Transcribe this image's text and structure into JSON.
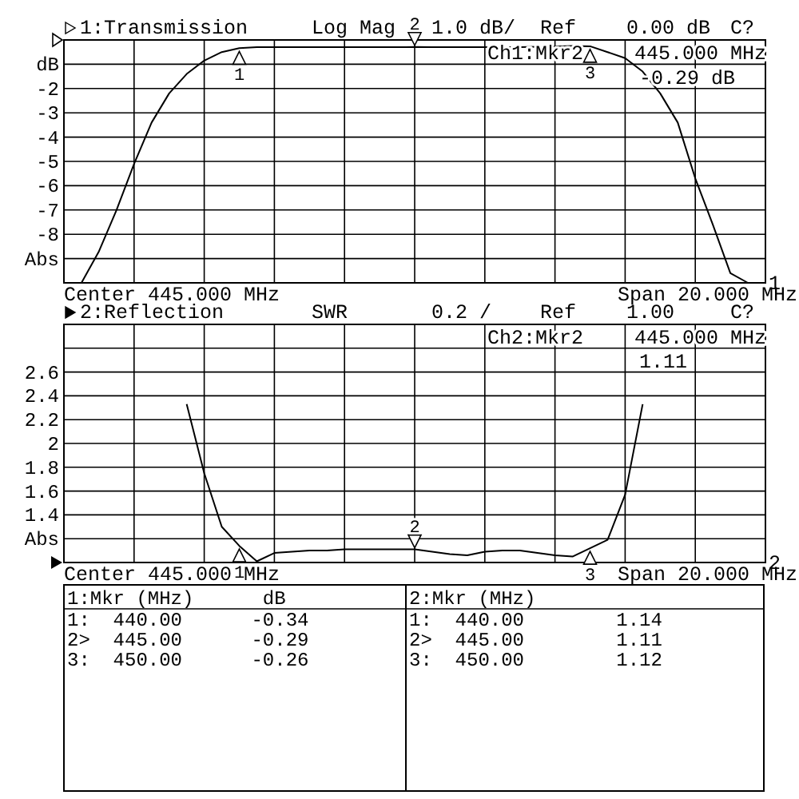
{
  "chart_data": [
    {
      "type": "line",
      "title": "1:Transmission",
      "categories": [
        null,
        null,
        null,
        null,
        null,
        null,
        null,
        null,
        null,
        null,
        null,
        null,
        null,
        null,
        null,
        null,
        null,
        null,
        null,
        null,
        null,
        null,
        null,
        null,
        null,
        null,
        null,
        null,
        null,
        null,
        null,
        null,
        null,
        null,
        null,
        null,
        null,
        null,
        null,
        null,
        null
      ],
      "ylim": [
        -10,
        0
      ],
      "yticks": [
        {
          "value": 0,
          "label": null
        },
        {
          "value": -1,
          "label": "dB"
        },
        -2,
        -3,
        -4,
        -5,
        -6,
        -7,
        -8,
        {
          "value": -9,
          "label": "Abs"
        },
        {
          "value": -10,
          "label": null
        }
      ],
      "grid": true,
      "series": [
        {
          "color": "#000000",
          "values": [
            -10,
            -10,
            -8.7,
            -7.0,
            -5.1,
            -3.4,
            -2.2,
            -1.4,
            -0.85,
            -0.5,
            -0.34,
            -0.3,
            -0.3,
            -0.3,
            -0.3,
            -0.3,
            -0.3,
            -0.3,
            -0.3,
            -0.3,
            -0.29,
            -0.3,
            -0.3,
            -0.3,
            -0.3,
            -0.3,
            -0.3,
            -0.28,
            -0.27,
            -0.25,
            -0.26,
            -0.5,
            -0.75,
            -1.3,
            -2.2,
            -3.4,
            -5.7,
            -7.6,
            -9.6,
            -10,
            -10
          ]
        }
      ],
      "annotations": [
        "Log Mag",
        "1.0 dB/",
        "Ref",
        "0.00 dB",
        "C?",
        "Ch1:Mkr2",
        "445.000 MHz",
        "-0.29 dB",
        "Center 445.000 MHz",
        "Span 20.000 MHz",
        "1",
        "1",
        "2",
        "3"
      ]
    },
    {
      "type": "line",
      "title": "2:Reflection",
      "categories": [
        null,
        null,
        null,
        null,
        null,
        null,
        null,
        null,
        null,
        null,
        null,
        null,
        null,
        null,
        null,
        null,
        null,
        null,
        null,
        null,
        null,
        null,
        null,
        null,
        null,
        null,
        null,
        null,
        null,
        null,
        null,
        null,
        null,
        null,
        null,
        null,
        null,
        null,
        null,
        null,
        null
      ],
      "ylim": [
        1.0,
        3.0
      ],
      "yticks": [
        {
          "value": 1.0,
          "label": null
        },
        {
          "value": 1.2,
          "label": "Abs"
        },
        1.4,
        1.6,
        1.8,
        2,
        2.2,
        2.4,
        2.6,
        {
          "value": 2.8,
          "label": null
        },
        {
          "value": 3.0,
          "label": null
        }
      ],
      "grid": true,
      "series": [
        {
          "color": "#000000",
          "values": [
            null,
            null,
            null,
            null,
            null,
            null,
            null,
            2.33,
            1.75,
            1.3,
            1.14,
            1.01,
            1.08,
            1.09,
            1.1,
            1.1,
            1.11,
            1.11,
            1.11,
            1.11,
            1.11,
            1.09,
            1.07,
            1.06,
            1.09,
            1.1,
            1.1,
            1.08,
            1.06,
            1.05,
            1.12,
            1.19,
            1.57,
            2.33,
            null,
            null,
            null,
            null,
            null,
            null,
            null
          ]
        }
      ],
      "annotations": [
        "SWR",
        "0.2 /",
        "Ref",
        "1.00",
        "C?",
        "Ch2:Mkr2",
        "445.000 MHz",
        "1.11",
        "Center 445.000 MHz",
        "Span 20.000 MHz",
        "2",
        "1",
        "2",
        "3"
      ]
    },
    {
      "type": "other",
      "annotations": [
        "1:Mkr (MHz)      dB",
        "1:  440.00      -0.34",
        "2>  445.00      -0.29",
        "3:  450.00      -0.26",
        "2:Mkr (MHz)",
        "1:  440.00        1.14",
        "2>  445.00        1.11",
        "3:  450.00        1.12"
      ]
    }
  ]
}
